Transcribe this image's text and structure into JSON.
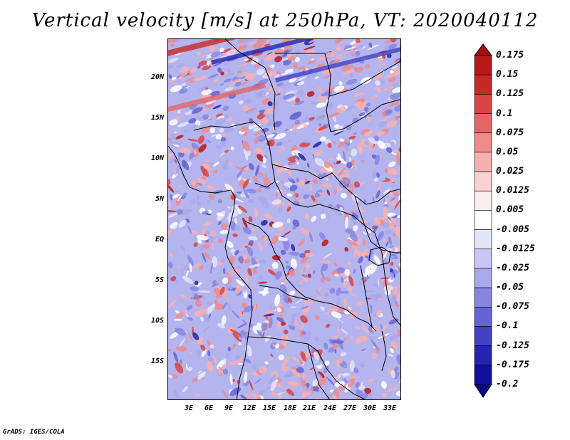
{
  "title": "Vertical velocity [m/s] at 250hPa, VT: 2020040112",
  "footer": "GrADS: IGES/COLA",
  "map": {
    "lat_labels": [
      "20N",
      "15N",
      "10N",
      "5N",
      "EQ",
      "5S",
      "10S",
      "15S"
    ],
    "lon_labels": [
      "3E",
      "6E",
      "9E",
      "12E",
      "15E",
      "18E",
      "21E",
      "24E",
      "27E",
      "30E",
      "33E"
    ]
  },
  "colorbar": {
    "labels": [
      "0.175",
      "0.15",
      "0.125",
      "0.1",
      "0.075",
      "0.05",
      "0.025",
      "0.0125",
      "0.005",
      "-0.005",
      "-0.0125",
      "-0.025",
      "-0.05",
      "-0.075",
      "-0.1",
      "-0.125",
      "-0.175",
      "-0.2"
    ],
    "colors": [
      "#a01010",
      "#b81818",
      "#c82828",
      "#d84444",
      "#e46666",
      "#ee8a8a",
      "#f6b0b0",
      "#fbd2d2",
      "#fdeeee",
      "#ffffff",
      "#e4e4fb",
      "#c8c8f4",
      "#a8a8ec",
      "#8686e0",
      "#6464d4",
      "#4242c4",
      "#2424b0",
      "#10109a",
      "#08088a"
    ]
  }
}
